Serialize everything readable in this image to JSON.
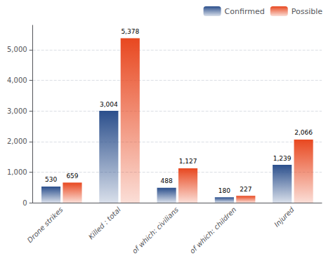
{
  "chart_data": {
    "type": "bar",
    "categories": [
      "Drone strikes",
      "Killed : total",
      "of which: civilians",
      "of which: children",
      "Injured"
    ],
    "series": [
      {
        "name": "Confirmed",
        "color": "#2b4f8c",
        "values": [
          530,
          3004,
          488,
          180,
          1239
        ],
        "value_labels": [
          "530",
          "3,004",
          "488",
          "180",
          "1,239"
        ]
      },
      {
        "name": "Possible",
        "color": "#e84820",
        "values": [
          659,
          5378,
          1127,
          227,
          2066
        ],
        "value_labels": [
          "659",
          "5,378",
          "1,127",
          "227",
          "2,066"
        ]
      }
    ],
    "ylim": [
      0,
      5800
    ],
    "yticks": [
      0,
      {
        "value": 1000,
        "label": "1,000"
      },
      {
        "value": 2000,
        "label": "2,000"
      },
      {
        "value": 3000,
        "label": "3,000"
      },
      {
        "value": 4000,
        "label": "4,000"
      },
      {
        "value": 5000,
        "label": "5,000"
      }
    ],
    "grid": true,
    "legend": "upper right",
    "data_labels": true
  }
}
